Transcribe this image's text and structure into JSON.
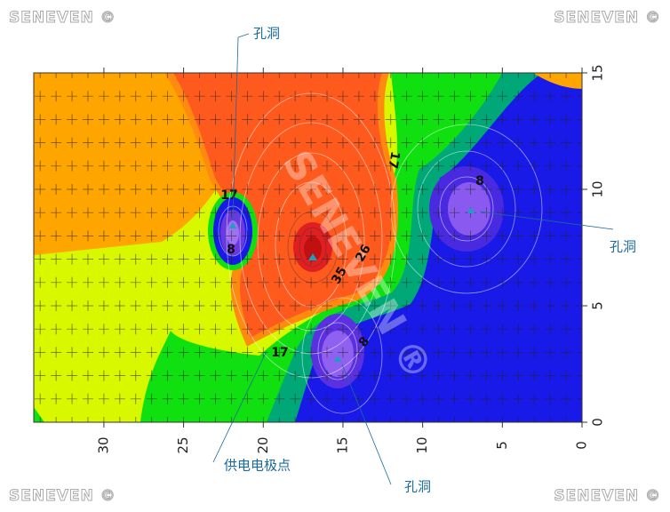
{
  "watermarks": [
    "SENEVEN ©",
    "SENEVEN ©",
    "SENEVEN ©",
    "SENEVEN ©"
  ],
  "center_watermark": "SENEVEN ®",
  "chart_data": {
    "type": "contour",
    "xlim": [
      34.4,
      0
    ],
    "ylim": [
      0,
      15
    ],
    "xticks": [
      30,
      25,
      20,
      15,
      10,
      5,
      0
    ],
    "yticks": [
      0,
      5,
      10,
      15
    ],
    "contour_labels": [
      "17",
      "8",
      "35",
      "26",
      "17",
      "17",
      "8",
      "8"
    ],
    "annotations": [
      "孔洞",
      "孔洞",
      "供电电极点",
      "孔洞"
    ]
  }
}
